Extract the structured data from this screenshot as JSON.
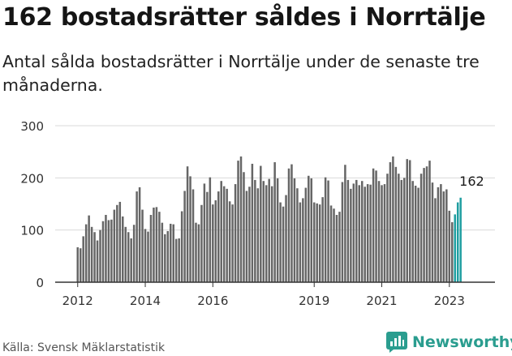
{
  "title": "162 bostadsrätter såldes i Norrtälje",
  "subtitle": "Antal sålda bostadsrätter i Norrtälje under de senaste tre månaderna.",
  "source": "Källa: Svensk Mäklarstatistik",
  "logo_text": "Newsworthy",
  "logo_icon": "newsworthy-chart-icon",
  "colors": {
    "bar": "#666666",
    "highlight": "#1f9ea0",
    "grid": "#d9d9d9",
    "axis": "#333333",
    "brand": "#2a9d8f"
  },
  "chart_data": {
    "type": "bar",
    "title": "162 bostadsrätter såldes i Norrtälje",
    "xlabel": "",
    "ylabel": "",
    "ylim": [
      0,
      300
    ],
    "yticks": [
      0,
      100,
      200,
      300
    ],
    "x_tick_labels": [
      {
        "label": "2012",
        "index": 0
      },
      {
        "label": "2014",
        "index": 24
      },
      {
        "label": "2016",
        "index": 48
      },
      {
        "label": "2019",
        "index": 84
      },
      {
        "label": "2021",
        "index": 108
      },
      {
        "label": "2023",
        "index": 132
      }
    ],
    "start": "2012-01",
    "values": [
      67,
      65,
      88,
      111,
      128,
      106,
      96,
      80,
      100,
      117,
      129,
      119,
      120,
      139,
      148,
      154,
      126,
      106,
      96,
      84,
      110,
      174,
      182,
      139,
      102,
      97,
      129,
      143,
      144,
      135,
      114,
      92,
      98,
      112,
      111,
      83,
      84,
      136,
      175,
      222,
      203,
      178,
      114,
      111,
      148,
      189,
      173,
      201,
      149,
      157,
      174,
      194,
      184,
      179,
      155,
      149,
      188,
      233,
      241,
      211,
      175,
      183,
      227,
      196,
      180,
      223,
      194,
      186,
      198,
      184,
      230,
      199,
      153,
      145,
      167,
      218,
      226,
      199,
      180,
      153,
      161,
      181,
      204,
      199,
      153,
      151,
      149,
      163,
      201,
      195,
      147,
      141,
      129,
      135,
      192,
      225,
      196,
      179,
      189,
      196,
      186,
      194,
      183,
      188,
      187,
      218,
      214,
      194,
      186,
      188,
      208,
      230,
      241,
      221,
      208,
      196,
      200,
      236,
      234,
      194,
      185,
      181,
      208,
      219,
      222,
      233,
      191,
      161,
      182,
      188,
      174,
      178,
      137,
      115,
      130,
      153,
      162
    ],
    "highlight_count": 3,
    "annotation": {
      "text": "162",
      "value": 162
    }
  }
}
